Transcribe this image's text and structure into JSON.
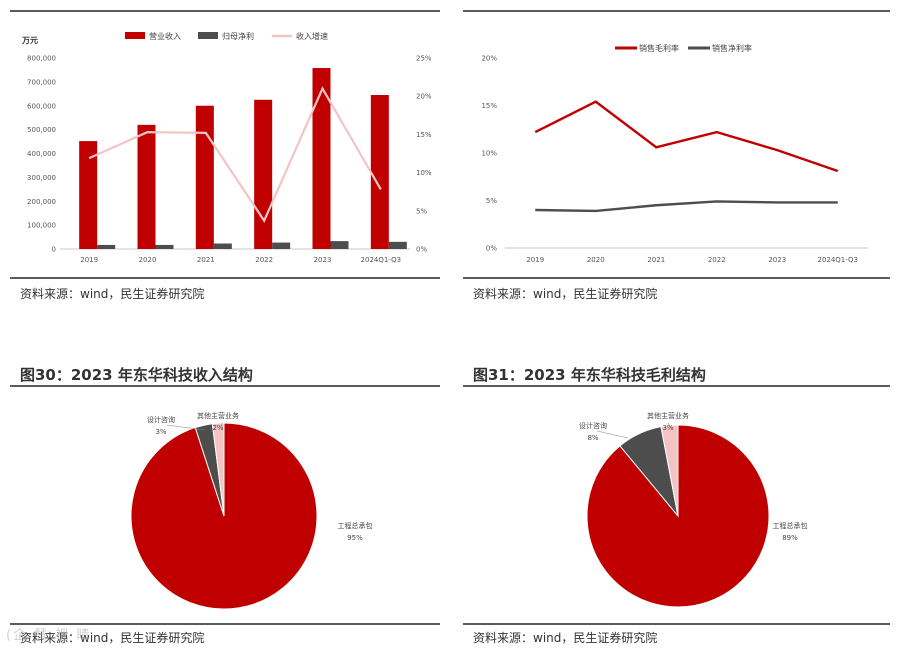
{
  "sources": {
    "tl": "资料来源：wind，民生证券研究院",
    "tr": "资料来源：wind，民生证券研究院",
    "bl": "资料来源：wind，民生证券研究院",
    "br": "资料来源：wind，民生证券研究院"
  },
  "titles": {
    "fig30": "图30：2023 年东华科技收入结构",
    "fig31": "图31：2023 年东华科技毛利结构"
  },
  "watermark": "(企 慧 视 睛",
  "colors": {
    "red": "#c00000",
    "dark": "#4d4d4d",
    "pink": "#f2c4c4"
  },
  "chart_data": [
    {
      "type": "bar",
      "unit_label": "万元",
      "categories": [
        "2019",
        "2020",
        "2021",
        "2022",
        "2023",
        "2024Q1-Q3"
      ],
      "series": [
        {
          "name": "营业收入",
          "type": "bar",
          "axis": "left",
          "color": "#c00000",
          "values": [
            452000,
            520000,
            600000,
            625000,
            758000,
            645000
          ]
        },
        {
          "name": "归母净利",
          "type": "bar",
          "axis": "left",
          "color": "#4d4d4d",
          "values": [
            17000,
            17000,
            23000,
            27000,
            33000,
            30000
          ]
        },
        {
          "name": "收入增速",
          "type": "line",
          "axis": "right",
          "color": "#f2c4c4",
          "values": [
            0.119,
            0.153,
            0.152,
            0.037,
            0.21,
            0.078
          ]
        }
      ],
      "ylim": [
        0,
        800000
      ],
      "y_ticks": [
        "0",
        "100,000",
        "200,000",
        "300,000",
        "400,000",
        "500,000",
        "600,000",
        "700,000",
        "800,000"
      ],
      "y2lim": [
        0,
        0.25
      ],
      "y2_ticks": [
        "0%",
        "5%",
        "10%",
        "15%",
        "20%",
        "25%"
      ],
      "legend_position": "top"
    },
    {
      "type": "line",
      "categories": [
        "2019",
        "2020",
        "2021",
        "2022",
        "2023",
        "2024Q1-Q3"
      ],
      "series": [
        {
          "name": "销售毛利率",
          "color": "#c00000",
          "values": [
            0.122,
            0.154,
            0.106,
            0.122,
            0.103,
            0.081
          ]
        },
        {
          "name": "销售净利率",
          "color": "#4d4d4d",
          "values": [
            0.04,
            0.039,
            0.045,
            0.049,
            0.048,
            0.048
          ]
        }
      ],
      "ylim": [
        0,
        0.2
      ],
      "y_ticks": [
        "0%",
        "5%",
        "10%",
        "15%",
        "20%"
      ],
      "legend_position": "top"
    },
    {
      "type": "pie",
      "slices": [
        {
          "name": "工程总承包",
          "pct_label": "95%",
          "value": 95,
          "color": "#c00000"
        },
        {
          "name": "设计咨询",
          "pct_label": "3%",
          "value": 3,
          "color": "#4d4d4d"
        },
        {
          "name": "其他主营业务",
          "pct_label": "2%",
          "value": 2,
          "color": "#f2c4c4"
        }
      ]
    },
    {
      "type": "pie",
      "slices": [
        {
          "name": "工程总承包",
          "pct_label": "89%",
          "value": 89,
          "color": "#c00000"
        },
        {
          "name": "设计咨询",
          "pct_label": "8%",
          "value": 8,
          "color": "#4d4d4d"
        },
        {
          "name": "其他主营业务",
          "pct_label": "3%",
          "value": 3,
          "color": "#f2c4c4"
        }
      ]
    }
  ]
}
